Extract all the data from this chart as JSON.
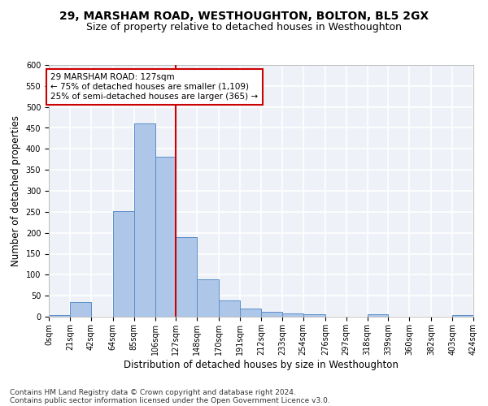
{
  "title": "29, MARSHAM ROAD, WESTHOUGHTON, BOLTON, BL5 2GX",
  "subtitle": "Size of property relative to detached houses in Westhoughton",
  "xlabel": "Distribution of detached houses by size in Westhoughton",
  "ylabel": "Number of detached properties",
  "footer1": "Contains HM Land Registry data © Crown copyright and database right 2024.",
  "footer2": "Contains public sector information licensed under the Open Government Licence v3.0.",
  "annotation_title": "29 MARSHAM ROAD: 127sqm",
  "annotation_line1": "← 75% of detached houses are smaller (1,109)",
  "annotation_line2": "25% of semi-detached houses are larger (365) →",
  "property_size": 127,
  "bin_edges": [
    0,
    21,
    42,
    64,
    85,
    106,
    127,
    148,
    170,
    191,
    212,
    233,
    254,
    276,
    297,
    318,
    339,
    360,
    382,
    403,
    424
  ],
  "bin_labels": [
    "0sqm",
    "21sqm",
    "42sqm",
    "64sqm",
    "85sqm",
    "106sqm",
    "127sqm",
    "148sqm",
    "170sqm",
    "191sqm",
    "212sqm",
    "233sqm",
    "254sqm",
    "276sqm",
    "297sqm",
    "318sqm",
    "339sqm",
    "360sqm",
    "382sqm",
    "403sqm",
    "424sqm"
  ],
  "counts": [
    4,
    35,
    0,
    252,
    460,
    381,
    190,
    90,
    38,
    20,
    12,
    8,
    6,
    0,
    0,
    5,
    0,
    0,
    0,
    4
  ],
  "bar_color": "#aec6e8",
  "bar_edge_color": "#5b8fc9",
  "vline_x": 127,
  "vline_color": "#cc0000",
  "ylim": [
    0,
    600
  ],
  "yticks": [
    0,
    50,
    100,
    150,
    200,
    250,
    300,
    350,
    400,
    450,
    500,
    550,
    600
  ],
  "bg_color": "#eef2f8",
  "grid_color": "#ffffff",
  "title_fontsize": 10,
  "subtitle_fontsize": 9,
  "axis_label_fontsize": 8.5,
  "tick_fontsize": 7,
  "annotation_fontsize": 7.5,
  "footer_fontsize": 6.5
}
